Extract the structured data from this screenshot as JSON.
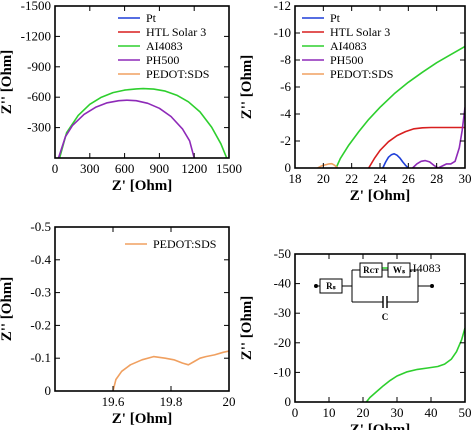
{
  "chart_data": [
    {
      "type": "line",
      "panel": "top-left",
      "xlabel": "Z' [Ohm]",
      "ylabel": "Z'' [Ohm]",
      "xlim": [
        0,
        1500
      ],
      "ylim": [
        -1500,
        0
      ],
      "y_inverted": true,
      "xticks": [
        "0",
        "300",
        "600",
        "900",
        "1200",
        "1500"
      ],
      "yticks": [
        "-1500",
        "-1200",
        "-900",
        "-600",
        "-300"
      ],
      "legend_position": "top-right",
      "series": [
        {
          "name": "Pt",
          "color": "#1f3fd8",
          "x": [],
          "y": []
        },
        {
          "name": "HTL Solar 3",
          "color": "#d81f1f",
          "x": [],
          "y": []
        },
        {
          "name": "AI4083",
          "color": "#2ecf2e",
          "x": [
            40,
            100,
            200,
            300,
            400,
            500,
            600,
            700,
            760,
            850,
            950,
            1050,
            1150,
            1250,
            1350,
            1430,
            1480
          ],
          "y": [
            0,
            -250,
            -420,
            -530,
            -600,
            -645,
            -670,
            -682,
            -685,
            -680,
            -660,
            -620,
            -555,
            -455,
            -305,
            -140,
            0
          ]
        },
        {
          "name": "PH500",
          "color": "#8e2ab8",
          "x": [
            30,
            90,
            150,
            250,
            350,
            450,
            550,
            620,
            700,
            800,
            900,
            1000,
            1100,
            1160,
            1200
          ],
          "y": [
            0,
            -210,
            -320,
            -430,
            -500,
            -545,
            -565,
            -570,
            -565,
            -540,
            -490,
            -410,
            -285,
            -170,
            0
          ]
        },
        {
          "name": "PEDOT:SDS",
          "color": "#f0a060",
          "x": [],
          "y": []
        }
      ]
    },
    {
      "type": "line",
      "panel": "top-right",
      "xlabel": "Z' [Ohm]",
      "ylabel": "Z'' [Ohm]",
      "xlim": [
        18,
        30
      ],
      "ylim": [
        -12,
        0
      ],
      "y_inverted": true,
      "xticks": [
        "18",
        "20",
        "22",
        "24",
        "26",
        "28",
        "30"
      ],
      "yticks": [
        "-12",
        "-10",
        "-8",
        "-6",
        "-4",
        "-2",
        "0"
      ],
      "legend_position": "top-left",
      "series": [
        {
          "name": "Pt",
          "color": "#1f3fd8",
          "x": [
            24.2,
            24.4,
            24.6,
            24.8,
            25.0,
            25.2,
            25.4,
            25.6,
            25.8,
            26.0
          ],
          "y": [
            0,
            -0.45,
            -0.8,
            -0.98,
            -1.05,
            -0.95,
            -0.75,
            -0.45,
            -0.2,
            0
          ]
        },
        {
          "name": "HTL Solar 3",
          "color": "#d81f1f",
          "x": [
            23.2,
            23.6,
            24.0,
            24.6,
            25.2,
            25.8,
            26.4,
            27.0,
            27.6,
            28.2,
            28.8,
            29.4,
            30.0
          ],
          "y": [
            0,
            -0.7,
            -1.3,
            -1.95,
            -2.4,
            -2.7,
            -2.9,
            -2.98,
            -3.0,
            -3.0,
            -3.0,
            -3.0,
            -3.0
          ]
        },
        {
          "name": "AI4083",
          "color": "#2ecf2e",
          "x": [
            20.9,
            21.2,
            21.8,
            22.5,
            23.2,
            24.0,
            25.0,
            26.0,
            27.0,
            28.0,
            29.0,
            30.0
          ],
          "y": [
            0,
            -0.7,
            -1.7,
            -2.7,
            -3.6,
            -4.5,
            -5.5,
            -6.35,
            -7.1,
            -7.8,
            -8.4,
            -9.0
          ]
        },
        {
          "name": "PH500",
          "color": "#8e2ab8",
          "x": [
            26.3,
            26.6,
            26.9,
            27.2,
            27.5,
            27.8,
            28.1,
            28.4,
            28.7,
            29.0,
            29.3,
            29.6,
            29.8,
            30.0
          ],
          "y": [
            0,
            -0.3,
            -0.5,
            -0.55,
            -0.45,
            -0.2,
            0,
            -0.15,
            -0.3,
            -0.3,
            -0.5,
            -1.5,
            -2.8,
            -4.5
          ]
        },
        {
          "name": "PEDOT:SDS",
          "color": "#f0a060",
          "x": [
            19.6,
            19.8,
            20.0,
            20.2,
            20.4,
            20.6,
            20.8,
            21.0
          ],
          "y": [
            0,
            -0.12,
            -0.2,
            -0.25,
            -0.3,
            -0.32,
            -0.2,
            0
          ]
        }
      ]
    },
    {
      "type": "line",
      "panel": "bottom-left",
      "xlabel": "Z' [Ohm]",
      "ylabel": "Z'' [Ohm]",
      "xlim": [
        19.4,
        20.0
      ],
      "ylim": [
        -0.5,
        0
      ],
      "y_inverted": true,
      "xticks": [
        "19.6",
        "19.8",
        "20"
      ],
      "yticks": [
        "-0.5",
        "-0.4",
        "-0.3",
        "-0.2",
        "-0.1",
        "0"
      ],
      "legend_position": "top-right",
      "series": [
        {
          "name": "PEDOT:SDS",
          "color": "#f0a060",
          "x": [
            19.6,
            19.61,
            19.63,
            19.66,
            19.7,
            19.74,
            19.78,
            19.81,
            19.84,
            19.86,
            19.88,
            19.9,
            19.92,
            19.95,
            19.98,
            20.0
          ],
          "y": [
            0,
            -0.035,
            -0.06,
            -0.08,
            -0.095,
            -0.105,
            -0.1,
            -0.095,
            -0.085,
            -0.08,
            -0.09,
            -0.1,
            -0.105,
            -0.11,
            -0.118,
            -0.122
          ]
        }
      ]
    },
    {
      "type": "line",
      "panel": "bottom-right",
      "xlabel": "Z' [Ohm]",
      "ylabel": "Z'' [Ohm]",
      "xlim": [
        0,
        50
      ],
      "ylim": [
        -50,
        0
      ],
      "y_inverted": true,
      "xticks": [
        "0",
        "10",
        "20",
        "30",
        "40",
        "50"
      ],
      "yticks": [
        "-50",
        "-40",
        "-30",
        "-20",
        "-10",
        "0"
      ],
      "legend_position": "top-right",
      "series": [
        {
          "name": "AI4083",
          "color": "#2ecf2e",
          "x": [
            21,
            22,
            24,
            26,
            28,
            30,
            33,
            36,
            39,
            42,
            44,
            46,
            47.5,
            49,
            50
          ],
          "y": [
            0,
            -1.5,
            -3.5,
            -5.5,
            -7.3,
            -8.8,
            -10.2,
            -11.0,
            -11.5,
            -12.0,
            -12.8,
            -14.5,
            -17,
            -21,
            -25
          ]
        }
      ],
      "inset_circuit": {
        "labels": [
          "Rs",
          "RCT",
          "Ws",
          "C"
        ]
      }
    }
  ]
}
